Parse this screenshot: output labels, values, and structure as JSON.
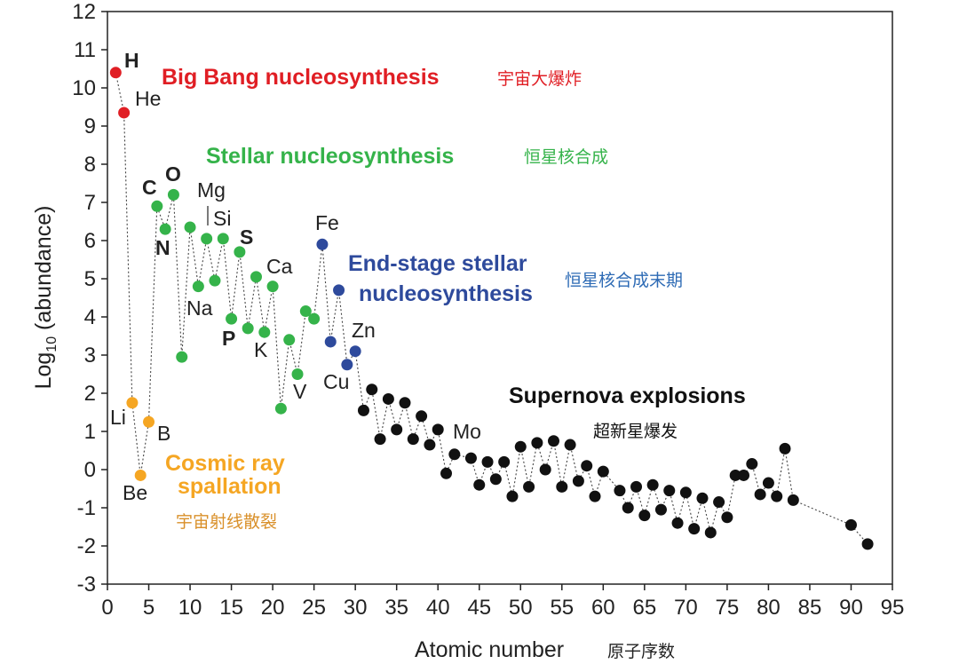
{
  "chart_data": {
    "type": "scatter",
    "title": "",
    "xlabel": "Atomic number",
    "xlabel_cn": "原子序数",
    "ylabel": "Log10 (abundance)",
    "xlim": [
      0,
      95
    ],
    "ylim": [
      -3,
      12
    ],
    "x_ticks": [
      0,
      5,
      10,
      15,
      20,
      25,
      30,
      35,
      40,
      45,
      50,
      55,
      60,
      65,
      70,
      75,
      80,
      85,
      90,
      95
    ],
    "y_ticks": [
      -3,
      -2,
      -1,
      0,
      1,
      2,
      3,
      4,
      5,
      6,
      7,
      8,
      9,
      10,
      11,
      12
    ],
    "colors": {
      "big_bang": "#e01e24",
      "stellar": "#35b34a",
      "end_stage": "#2e4a9c",
      "supernova": "#111111",
      "cosmic": "#f5a623",
      "cn_big_bang": "#e01e24",
      "cn_stellar": "#35b34a",
      "cn_end_stage": "#2e6bb5",
      "cn_supernova": "#111111",
      "cn_cosmic": "#d9902a"
    },
    "series": [
      {
        "name": "Big Bang nucleosynthesis",
        "group": "big_bang",
        "x": [
          1,
          2
        ],
        "y": [
          10.4,
          9.35
        ]
      },
      {
        "name": "Cosmic ray spallation",
        "group": "cosmic",
        "x": [
          3,
          4,
          5
        ],
        "y": [
          1.75,
          -0.15,
          1.25
        ]
      },
      {
        "name": "Stellar nucleosynthesis",
        "group": "stellar",
        "x": [
          6,
          7,
          8,
          9,
          10,
          11,
          12,
          13,
          14,
          15,
          16,
          17,
          18,
          19,
          20,
          21,
          22,
          23,
          24,
          25
        ],
        "y": [
          6.9,
          6.3,
          7.2,
          2.95,
          6.35,
          4.8,
          6.05,
          4.95,
          6.05,
          3.95,
          5.7,
          3.7,
          5.05,
          3.6,
          4.8,
          1.6,
          3.4,
          2.5,
          4.15,
          3.95
        ]
      },
      {
        "name": "End-stage stellar nucleosynthesis",
        "group": "end_stage",
        "x": [
          26,
          27,
          28,
          29,
          30
        ],
        "y": [
          5.9,
          3.35,
          4.7,
          2.75,
          3.1
        ]
      },
      {
        "name": "Supernova explosions",
        "group": "supernova",
        "x": [
          31,
          32,
          33,
          34,
          35,
          36,
          37,
          38,
          39,
          40,
          41,
          42,
          44,
          45,
          46,
          47,
          48,
          49,
          50,
          51,
          52,
          53,
          54,
          55,
          56,
          57,
          58,
          59,
          60,
          62,
          63,
          64,
          65,
          66,
          67,
          68,
          69,
          70,
          71,
          72,
          73,
          74,
          75,
          76,
          77,
          78,
          79,
          80,
          81,
          82,
          83,
          90,
          92
        ],
        "y": [
          1.55,
          2.1,
          0.8,
          1.85,
          1.05,
          1.75,
          0.8,
          1.4,
          0.65,
          1.05,
          -0.1,
          0.4,
          0.3,
          -0.4,
          0.2,
          -0.25,
          0.2,
          -0.7,
          0.6,
          -0.45,
          0.7,
          0.0,
          0.75,
          -0.45,
          0.65,
          -0.3,
          0.1,
          -0.7,
          -0.05,
          -0.55,
          -1.0,
          -0.45,
          -1.2,
          -0.4,
          -1.05,
          -0.55,
          -1.4,
          -0.6,
          -1.55,
          -0.75,
          -1.65,
          -0.85,
          -1.25,
          -0.15,
          -0.15,
          0.15,
          -0.65,
          -0.35,
          -0.7,
          0.55,
          -0.8,
          -1.45,
          -1.95
        ]
      }
    ],
    "element_labels": [
      {
        "text": "H",
        "bold": true
      },
      {
        "text": "He",
        "bold": false
      },
      {
        "text": "Li",
        "bold": false
      },
      {
        "text": "Be",
        "bold": false
      },
      {
        "text": "B",
        "bold": false
      },
      {
        "text": "C",
        "bold": true
      },
      {
        "text": "N",
        "bold": true
      },
      {
        "text": "O",
        "bold": true
      },
      {
        "text": "Na",
        "bold": false
      },
      {
        "text": "Mg",
        "bold": false
      },
      {
        "text": "Si",
        "bold": false
      },
      {
        "text": "P",
        "bold": true
      },
      {
        "text": "S",
        "bold": true
      },
      {
        "text": "K",
        "bold": false
      },
      {
        "text": "Ca",
        "bold": false
      },
      {
        "text": "V",
        "bold": false
      },
      {
        "text": "Fe",
        "bold": false
      },
      {
        "text": "Cu",
        "bold": false
      },
      {
        "text": "Zn",
        "bold": false
      },
      {
        "text": "Mo",
        "bold": false
      }
    ],
    "annotations": {
      "big_bang": {
        "title": "Big Bang nucleosynthesis",
        "cn": "宇宙大爆炸"
      },
      "stellar": {
        "title": "Stellar nucleosynthesis",
        "cn": "恒星核合成"
      },
      "end_stage": {
        "title_line1": "End-stage stellar",
        "title_line2": "nucleosynthesis",
        "cn": "恒星核合成末期"
      },
      "supernova": {
        "title": "Supernova explosions",
        "cn": "超新星爆发"
      },
      "cosmic": {
        "title_line1": "Cosmic ray",
        "title_line2": "spallation",
        "cn": "宇宙射线散裂"
      }
    }
  }
}
